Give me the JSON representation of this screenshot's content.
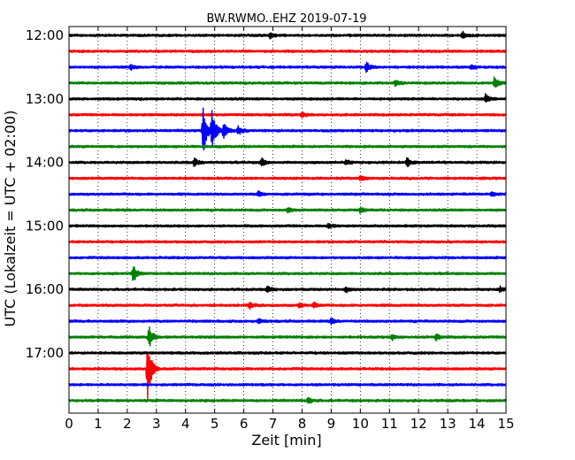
{
  "chart_data": {
    "type": "line",
    "title": "BW.RWMO..EHZ 2019-07-19",
    "xlabel": "Zeit  [min]",
    "ylabel": "UTC (Lokalzeit = UTC + 02:00)",
    "xlim": [
      0,
      15
    ],
    "x_ticks": [
      "0",
      "1",
      "2",
      "3",
      "4",
      "5",
      "6",
      "7",
      "8",
      "9",
      "10",
      "11",
      "12",
      "13",
      "14",
      "15"
    ],
    "y_ticks": [
      "12:00",
      "13:00",
      "14:00",
      "15:00",
      "16:00",
      "17:00"
    ],
    "grid": "vertical dotted",
    "series_colors": [
      "#000000",
      "#ff0000",
      "#0000ff",
      "#008000"
    ],
    "traces": [
      {
        "start": "12:00",
        "color": "#000000",
        "events": [
          {
            "t": 6.9,
            "a": 3
          },
          {
            "t": 13.5,
            "a": 4
          }
        ]
      },
      {
        "start": "12:15",
        "color": "#ff0000",
        "events": []
      },
      {
        "start": "12:30",
        "color": "#0000ff",
        "events": [
          {
            "t": 2.1,
            "a": 3
          },
          {
            "t": 10.2,
            "a": 6
          },
          {
            "t": 13.8,
            "a": 3
          }
        ]
      },
      {
        "start": "12:45",
        "color": "#008000",
        "events": [
          {
            "t": 11.2,
            "a": 3
          },
          {
            "t": 14.6,
            "a": 7
          }
        ]
      },
      {
        "start": "13:00",
        "color": "#000000",
        "events": [
          {
            "t": 14.3,
            "a": 5
          }
        ]
      },
      {
        "start": "13:15",
        "color": "#ff0000",
        "events": [
          {
            "t": 8.0,
            "a": 3
          }
        ]
      },
      {
        "start": "13:30",
        "color": "#0000ff",
        "events": [
          {
            "t": 4.6,
            "a": 28
          },
          {
            "t": 4.9,
            "a": 27
          },
          {
            "t": 5.3,
            "a": 10
          },
          {
            "t": 5.8,
            "a": 5
          }
        ]
      },
      {
        "start": "13:45",
        "color": "#008000",
        "events": []
      },
      {
        "start": "14:00",
        "color": "#000000",
        "events": [
          {
            "t": 4.3,
            "a": 5
          },
          {
            "t": 6.6,
            "a": 5
          },
          {
            "t": 9.5,
            "a": 3
          },
          {
            "t": 11.6,
            "a": 5
          }
        ]
      },
      {
        "start": "14:15",
        "color": "#ff0000",
        "events": [
          {
            "t": 10.0,
            "a": 3
          }
        ]
      },
      {
        "start": "14:30",
        "color": "#0000ff",
        "events": [
          {
            "t": 6.5,
            "a": 3
          },
          {
            "t": 14.5,
            "a": 3
          }
        ]
      },
      {
        "start": "14:45",
        "color": "#008000",
        "events": [
          {
            "t": 7.5,
            "a": 3
          },
          {
            "t": 10.0,
            "a": 3
          }
        ]
      },
      {
        "start": "15:00",
        "color": "#000000",
        "events": [
          {
            "t": 8.9,
            "a": 3
          }
        ]
      },
      {
        "start": "15:15",
        "color": "#ff0000",
        "events": []
      },
      {
        "start": "15:30",
        "color": "#0000ff",
        "events": []
      },
      {
        "start": "15:45",
        "color": "#008000",
        "events": [
          {
            "t": 2.2,
            "a": 10
          }
        ]
      },
      {
        "start": "16:00",
        "color": "#000000",
        "events": [
          {
            "t": 6.8,
            "a": 4
          },
          {
            "t": 9.5,
            "a": 3
          },
          {
            "t": 14.8,
            "a": 3
          }
        ]
      },
      {
        "start": "16:15",
        "color": "#ff0000",
        "events": [
          {
            "t": 6.2,
            "a": 3
          },
          {
            "t": 7.9,
            "a": 3
          },
          {
            "t": 8.4,
            "a": 3
          }
        ]
      },
      {
        "start": "16:30",
        "color": "#0000ff",
        "events": [
          {
            "t": 6.5,
            "a": 3
          },
          {
            "t": 9.0,
            "a": 3
          }
        ]
      },
      {
        "start": "16:45",
        "color": "#008000",
        "events": [
          {
            "t": 2.75,
            "a": 12
          },
          {
            "t": 11.1,
            "a": 3
          },
          {
            "t": 12.6,
            "a": 4
          }
        ]
      },
      {
        "start": "17:00",
        "color": "#000000",
        "events": []
      },
      {
        "start": "17:15",
        "color": "#ff0000",
        "events": [
          {
            "t": 2.7,
            "a": 34
          }
        ]
      },
      {
        "start": "17:30",
        "color": "#0000ff",
        "events": []
      },
      {
        "start": "17:45",
        "color": "#008000",
        "events": [
          {
            "t": 8.2,
            "a": 4
          }
        ]
      }
    ]
  }
}
